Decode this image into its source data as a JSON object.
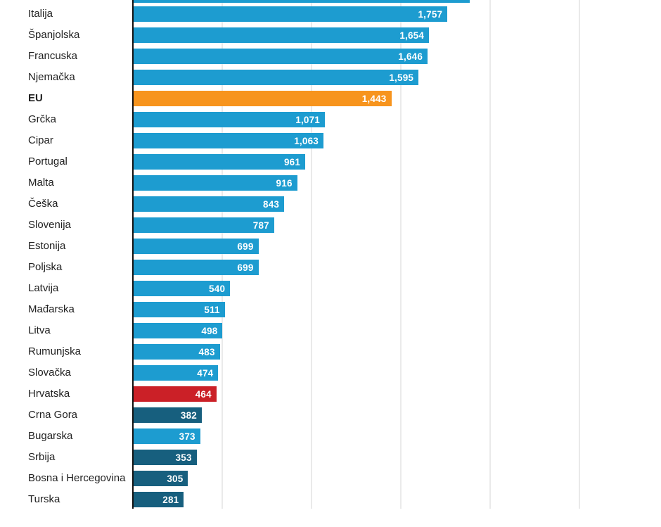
{
  "chart_data": {
    "type": "bar",
    "orientation": "horizontal",
    "title": "",
    "xlabel": "",
    "ylabel": "",
    "xlim": [
      0,
      2500
    ],
    "gridline_interval": 500,
    "grid": "vertical-gridlines-on",
    "legend": "none",
    "clipped_top_bar_value": 1880,
    "categories": [
      "Italija",
      "Španjolska",
      "Francuska",
      "Njemačka",
      "EU",
      "Grčka",
      "Cipar",
      "Portugal",
      "Malta",
      "Češka",
      "Slovenija",
      "Estonija",
      "Poljska",
      "Latvija",
      "Mađarska",
      "Litva",
      "Rumunjska",
      "Slovačka",
      "Hrvatska",
      "Crna Gora",
      "Bugarska",
      "Srbija",
      "Bosna i Hercegovina",
      "Turska"
    ],
    "values": [
      1757,
      1654,
      1646,
      1595,
      1443,
      1071,
      1063,
      961,
      916,
      843,
      787,
      699,
      699,
      540,
      511,
      498,
      483,
      474,
      464,
      382,
      373,
      353,
      305,
      281
    ],
    "value_labels": [
      "1,757",
      "1,654",
      "1,646",
      "1,595",
      "1,443",
      "1,071",
      "1,063",
      "961",
      "916",
      "843",
      "787",
      "699",
      "699",
      "540",
      "511",
      "498",
      "483",
      "474",
      "464",
      "382",
      "373",
      "353",
      "305",
      "281"
    ],
    "row_colors": [
      "bar_default",
      "bar_default",
      "bar_default",
      "bar_default",
      "bar_eu_average",
      "bar_default",
      "bar_default",
      "bar_default",
      "bar_default",
      "bar_default",
      "bar_default",
      "bar_default",
      "bar_default",
      "bar_default",
      "bar_default",
      "bar_default",
      "bar_default",
      "bar_default",
      "bar_highlight",
      "bar_non_eu",
      "bar_default",
      "bar_non_eu",
      "bar_non_eu",
      "bar_non_eu"
    ],
    "bold_rows": [
      4
    ]
  },
  "colors": {
    "bar_default": "#1D9CD0",
    "bar_eu_average": "#F7941D",
    "bar_highlight": "#CB2027",
    "bar_non_eu": "#175F7E",
    "gridline": "#EAEAEA",
    "axis_line": "#111111",
    "category_text": "#212121",
    "value_text": "#FFFFFF",
    "background": "#FFFFFF"
  }
}
